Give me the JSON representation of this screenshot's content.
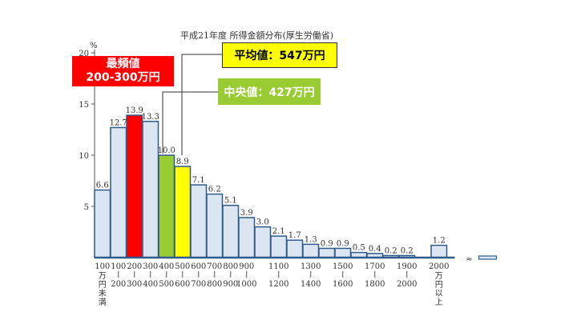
{
  "chart_data": {
    "type": "bar",
    "title": "平成21年度 所得金額分布(厚生労働省)",
    "ylabel": "%",
    "ylim": [
      0,
      20
    ],
    "yticks": [
      5,
      10,
      15,
      20
    ],
    "categories": [
      "100万円未満",
      "100-200",
      "200-300",
      "300-400",
      "400-500",
      "500-600",
      "600-700",
      "700-800",
      "800-900",
      "900-1000",
      "1000-1100",
      "1100-1200",
      "1200-1300",
      "1300-1400",
      "1400-1500",
      "1500-1600",
      "1600-1700",
      "1700-1800",
      "1800-1900",
      "1900-2000",
      "2000万円以上"
    ],
    "values": [
      6.6,
      12.7,
      13.9,
      13.3,
      10.0,
      8.9,
      7.1,
      6.2,
      5.1,
      3.9,
      3.0,
      2.1,
      1.7,
      1.3,
      0.9,
      0.9,
      0.5,
      0.4,
      0.2,
      0.2,
      1.2
    ],
    "value_labels": [
      "6.6",
      "12.7",
      "13.9",
      "13.3",
      "10.0",
      "8.9",
      "7.1",
      "6.2",
      "5.1",
      "3.9",
      "3.0",
      "2.1",
      "1.7",
      "1.3",
      "0.9",
      "0.9",
      "0.5",
      "0.4",
      "0.2",
      "0.2",
      "1.2"
    ],
    "x_tick_labels": [
      {
        "top": "100",
        "bottom": "万円未満"
      },
      {
        "top": "100",
        "bottom": "200"
      },
      {
        "top": "200",
        "bottom": "300"
      },
      {
        "top": "300",
        "bottom": "400"
      },
      {
        "top": "400",
        "bottom": "500"
      },
      {
        "top": "500",
        "bottom": "600"
      },
      {
        "top": "600",
        "bottom": "700"
      },
      {
        "top": "700",
        "bottom": "800"
      },
      {
        "top": "800",
        "bottom": "900"
      },
      {
        "top": "900",
        "bottom": "1000"
      },
      {
        "top": "1100",
        "bottom": "1200"
      },
      {
        "top": "1300",
        "bottom": "1400"
      },
      {
        "top": "1500",
        "bottom": "1600"
      },
      {
        "top": "1700",
        "bottom": "1800"
      },
      {
        "top": "1900",
        "bottom": "2000"
      },
      {
        "top": "2000",
        "bottom": "万円以上"
      }
    ],
    "highlights": [
      {
        "index": 2,
        "color": "#ff0000",
        "label": "最頻値"
      },
      {
        "index": 4,
        "color": "#99cc33",
        "label": "中央値"
      },
      {
        "index": 5,
        "color": "#ffff00",
        "label": "平均値"
      }
    ],
    "default_bar_color": "#dce6f2",
    "bar_edge_color": "#2f5a8a",
    "axis_break_symbol": "≈"
  },
  "callouts": {
    "mode": {
      "line1": "最頻値",
      "line2": "200-300万円",
      "color": "#ff0000"
    },
    "mean": {
      "text": "平均値：547万円",
      "color": "#ffff00"
    },
    "median": {
      "text": "中央値：427万円",
      "color": "#99cc33"
    }
  }
}
